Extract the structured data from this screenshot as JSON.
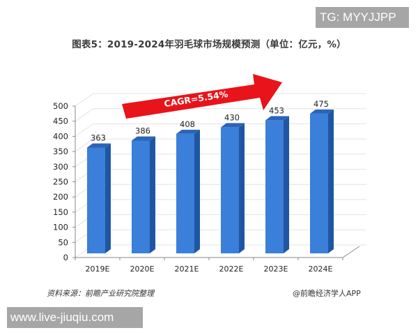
{
  "watermarks": {
    "top_right": "TG: MYYJJPP",
    "bottom_left": "www.live-jiuqiu.com"
  },
  "chart_data": {
    "type": "bar",
    "title": "图表5：2019-2024年羽毛球市场规模预测（单位：亿元，%）",
    "categories": [
      "2019E",
      "2020E",
      "2021E",
      "2022E",
      "2023E",
      "2024E"
    ],
    "values": [
      363,
      386,
      408,
      430,
      453,
      475
    ],
    "value_labels": [
      "363",
      "386",
      "408",
      "430",
      "453",
      "475"
    ],
    "xlabel": "",
    "ylabel": "",
    "ylim": [
      0,
      500
    ],
    "yticks": [
      0,
      50,
      100,
      150,
      200,
      250,
      300,
      350,
      400,
      450,
      500
    ],
    "ytick_labels": [
      "0",
      "50",
      "100",
      "150",
      "200",
      "250",
      "300",
      "350",
      "400",
      "450",
      "500"
    ],
    "grid": true,
    "style": "3d-column",
    "legend": null,
    "annotations": [
      {
        "type": "arrow",
        "text": "CAGR=5.54%",
        "color": "#e8141a",
        "direction": "up-right"
      }
    ],
    "colors": {
      "bar_front": "#3a7fd9",
      "bar_side": "#1f56a3",
      "bar_top": "#2a64b8",
      "arrow": "#e8141a",
      "grid": "#e3e3e3",
      "axis": "#8a8a8a"
    }
  },
  "footer": {
    "source": "资料来源：前瞻产业研究院整理",
    "credit": "@前瞻经济学人APP"
  }
}
